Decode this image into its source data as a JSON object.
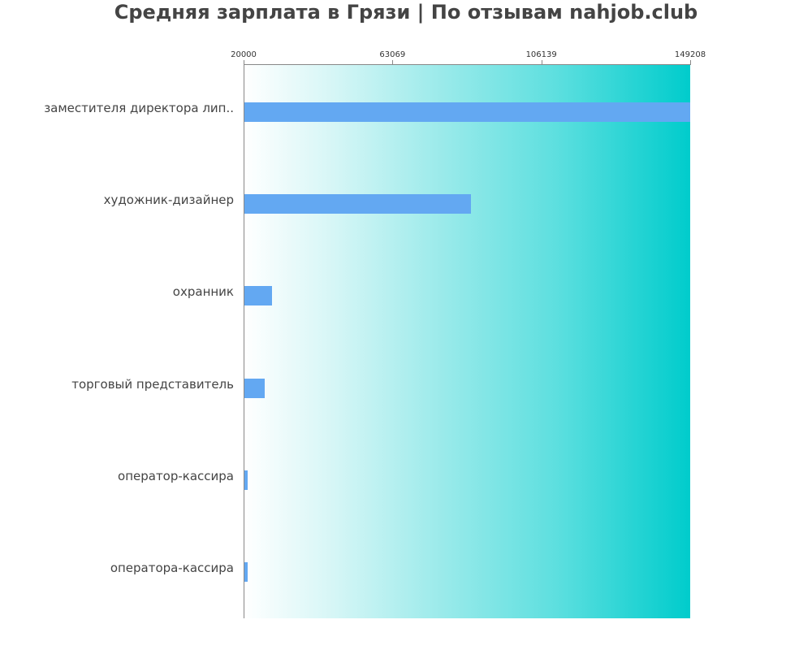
{
  "chart_data": {
    "type": "bar",
    "orientation": "horizontal",
    "title": "Средняя зарплата в Грязи | По отзывам nahjob.club",
    "xlabel": "",
    "ylabel": "",
    "xlim": [
      20000,
      149208
    ],
    "xticks": [
      "20000",
      "63069",
      "106139",
      "149208"
    ],
    "categories": [
      "заместителя директора лип..",
      "художник-дизайнер",
      "охранник",
      "торговый представитель",
      "оператор-кассира",
      "оператора-кассира"
    ],
    "values": [
      149208,
      85800,
      28200,
      26100,
      21200,
      21200
    ],
    "bar_color": "#63a8f2",
    "background_gradient": [
      "#ffffff",
      "#00cccc"
    ],
    "grid": false,
    "legend": null
  }
}
